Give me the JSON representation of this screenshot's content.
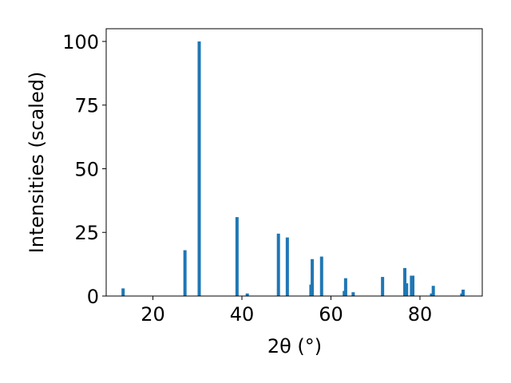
{
  "chart_data": {
    "type": "bar",
    "xlabel": "2θ (°)",
    "ylabel": "Intensities (scaled)",
    "xlim": [
      9.5,
      94
    ],
    "ylim": [
      0,
      105
    ],
    "x_ticks": [
      20,
      40,
      60,
      80
    ],
    "y_ticks": [
      0,
      25,
      50,
      75,
      100
    ],
    "grid": false,
    "bar_color": "#1f77b4",
    "bars": [
      {
        "x": 13.3,
        "y": 3
      },
      {
        "x": 27.2,
        "y": 18
      },
      {
        "x": 30.4,
        "y": 100
      },
      {
        "x": 38.9,
        "y": 31
      },
      {
        "x": 41.2,
        "y": 1
      },
      {
        "x": 48.2,
        "y": 24.5
      },
      {
        "x": 50.2,
        "y": 23
      },
      {
        "x": 55.5,
        "y": 4.5
      },
      {
        "x": 55.8,
        "y": 14.5
      },
      {
        "x": 57.9,
        "y": 15.5
      },
      {
        "x": 63.0,
        "y": 2
      },
      {
        "x": 63.3,
        "y": 7
      },
      {
        "x": 65.0,
        "y": 1.5
      },
      {
        "x": 71.6,
        "y": 7.5
      },
      {
        "x": 76.6,
        "y": 11
      },
      {
        "x": 77.0,
        "y": 5
      },
      {
        "x": 78.1,
        "y": 8
      },
      {
        "x": 78.4,
        "y": 8
      },
      {
        "x": 82.6,
        "y": 1
      },
      {
        "x": 83.0,
        "y": 4
      },
      {
        "x": 89.4,
        "y": 1
      },
      {
        "x": 89.7,
        "y": 2.5
      }
    ]
  }
}
